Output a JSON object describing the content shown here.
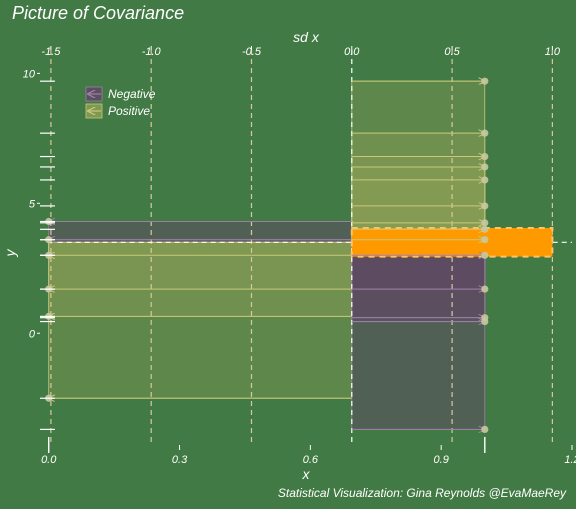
{
  "chart_data": {
    "type": "scatter",
    "title": "Picture of Covariance",
    "xlabel": "x",
    "ylabel": "y",
    "top_axis_label": "sd x",
    "caption": "Statistical Visualization: Gina Reynolds @EvaMaeRey",
    "xlim": [
      -0.02,
      1.2
    ],
    "ylim": [
      -4.3,
      10.9
    ],
    "x_ticks": [
      0.0,
      0.3,
      0.6,
      0.9,
      1.2
    ],
    "x_tick_labels": [
      "0.0",
      "0.3",
      "0.6",
      "0.9",
      "1.2"
    ],
    "y_ticks": [
      0,
      5,
      10
    ],
    "y_tick_labels": [
      "0",
      "5",
      "10"
    ],
    "top_ticks": [
      -1.5,
      -1.0,
      -0.5,
      0.0,
      0.5,
      1.0
    ],
    "top_tick_labels": [
      "-1.5",
      "-1.0",
      "-0.5",
      "0.0",
      "0.5",
      "1.0"
    ],
    "mean_x": 0.695,
    "mean_y": 3.5,
    "sd_x": 0.46,
    "sd_y": 0.55,
    "grid": false,
    "legend": {
      "position": "top-left",
      "entries": [
        {
          "label": "Negative",
          "color": "#5e4a63"
        },
        {
          "label": "Positive",
          "color": "#8a9e55"
        }
      ]
    },
    "colors": {
      "background": "#427a45",
      "negative": "#5e4a63",
      "positive": "#8a9e55",
      "negative_line": "#a07ea8",
      "positive_line": "#c8c87a",
      "covariance_band": "#ff9900",
      "points": "#c8c8a0"
    },
    "points": [
      {
        "x": 0.0,
        "y": 4.3,
        "sign": "Negative"
      },
      {
        "x": 0.0,
        "y": 3.6,
        "sign": "Negative"
      },
      {
        "x": 0.0,
        "y": 3.0,
        "sign": "Positive"
      },
      {
        "x": 0.0,
        "y": 1.7,
        "sign": "Positive"
      },
      {
        "x": 0.0,
        "y": 0.65,
        "sign": "Positive"
      },
      {
        "x": 0.0,
        "y": -2.5,
        "sign": "Positive"
      },
      {
        "x": 1.0,
        "y": -3.7,
        "sign": "Negative"
      },
      {
        "x": 1.0,
        "y": 0.45,
        "sign": "Negative"
      },
      {
        "x": 1.0,
        "y": 0.6,
        "sign": "Negative"
      },
      {
        "x": 1.0,
        "y": 1.7,
        "sign": "Negative"
      },
      {
        "x": 1.0,
        "y": 3.0,
        "sign": "Negative"
      },
      {
        "x": 1.0,
        "y": 3.6,
        "sign": "Positive"
      },
      {
        "x": 1.0,
        "y": 4.0,
        "sign": "Positive"
      },
      {
        "x": 1.0,
        "y": 4.25,
        "sign": "Positive"
      },
      {
        "x": 1.0,
        "y": 4.9,
        "sign": "Positive"
      },
      {
        "x": 1.0,
        "y": 5.9,
        "sign": "Positive"
      },
      {
        "x": 1.0,
        "y": 6.4,
        "sign": "Positive"
      },
      {
        "x": 1.0,
        "y": 6.8,
        "sign": "Positive"
      },
      {
        "x": 1.0,
        "y": 7.7,
        "sign": "Positive"
      },
      {
        "x": 1.0,
        "y": 9.7,
        "sign": "Positive"
      }
    ]
  }
}
